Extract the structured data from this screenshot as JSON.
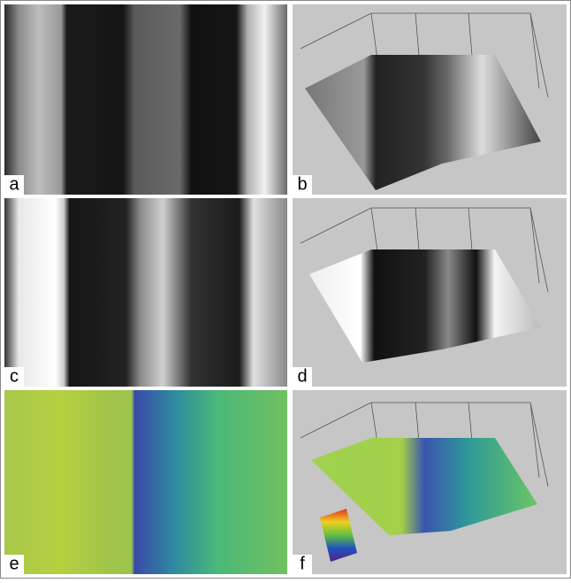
{
  "panels": [
    {
      "label": "a"
    },
    {
      "label": "b"
    },
    {
      "label": "c"
    },
    {
      "label": "d"
    },
    {
      "label": "e"
    },
    {
      "label": "f"
    }
  ]
}
